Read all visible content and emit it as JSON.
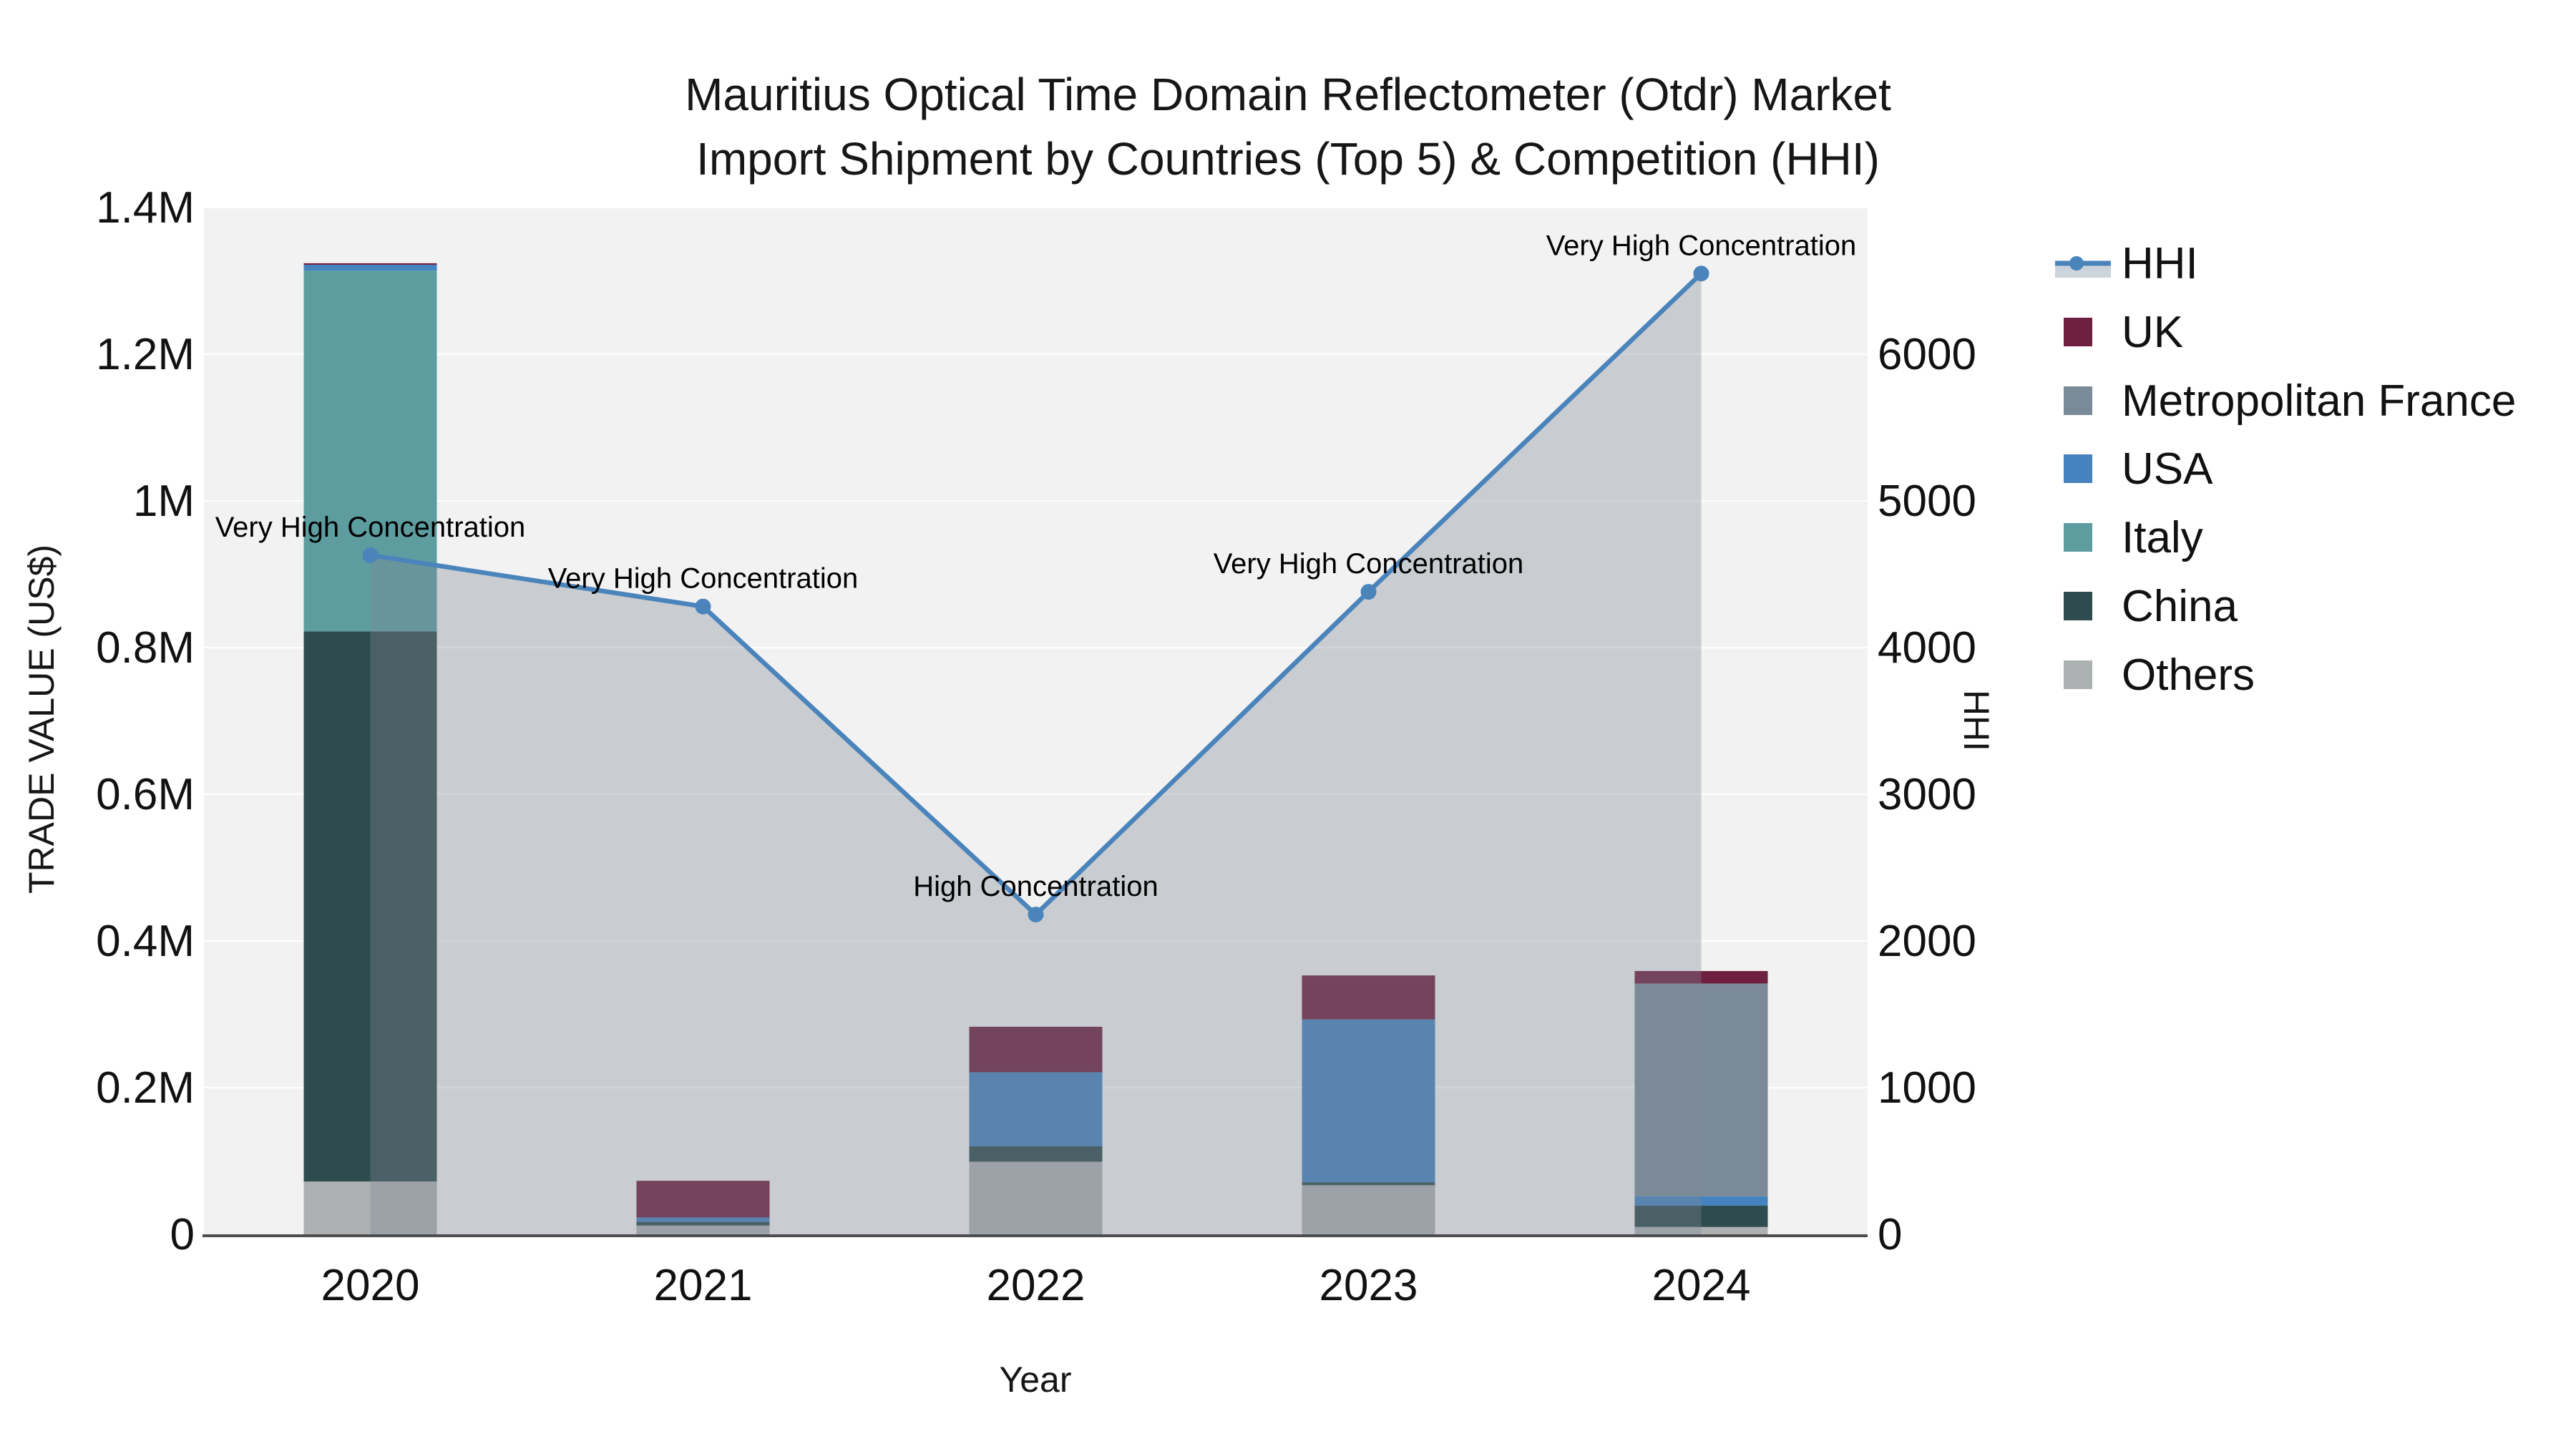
{
  "page": {
    "background": "#ffffff",
    "plot_background": "#f2f2f2",
    "grid_color": "#ffffff",
    "axis_line_color": "#4d4d4d"
  },
  "title": {
    "line1": "Mauritius Optical Time Domain Reflectometer (Otdr) Market",
    "line2": "Import Shipment by Countries (Top 5) & Competition (HHI)"
  },
  "axes": {
    "left": {
      "title": "TRADE VALUE (US$)",
      "tick_labels": [
        "0",
        "0.2M",
        "0.4M",
        "0.6M",
        "0.8M",
        "1M",
        "1.2M",
        "1.4M"
      ],
      "tick_values": [
        0,
        200000,
        400000,
        600000,
        800000,
        1000000,
        1200000,
        1400000
      ],
      "range": [
        0,
        1400000
      ]
    },
    "right": {
      "title": "HHI",
      "tick_labels": [
        "0",
        "1000",
        "2000",
        "3000",
        "4000",
        "5000",
        "6000"
      ],
      "tick_values": [
        0,
        1000,
        2000,
        3000,
        4000,
        5000,
        6000
      ],
      "range": [
        0,
        7000
      ]
    },
    "x": {
      "title": "Year",
      "categories": [
        "2020",
        "2021",
        "2022",
        "2023",
        "2024"
      ]
    }
  },
  "legend": {
    "items": [
      {
        "label": "HHI",
        "type": "line",
        "color": "#4a84bb",
        "band_color": "#ccd3db"
      },
      {
        "label": "UK",
        "type": "square",
        "color": "#6f1f40"
      },
      {
        "label": "Metropolitan France",
        "type": "square",
        "color": "#7b8a99"
      },
      {
        "label": "USA",
        "type": "square",
        "color": "#4583bf"
      },
      {
        "label": "Italy",
        "type": "square",
        "color": "#5d9da0"
      },
      {
        "label": "China",
        "type": "square",
        "color": "#2e4c4d"
      },
      {
        "label": "Others",
        "type": "square",
        "color": "#aeb1b2"
      }
    ]
  },
  "chart_data": {
    "type": "bar+line",
    "title": "Mauritius Optical Time Domain Reflectometer (Otdr) Market Import Shipment by Countries (Top 5) & Competition (HHI)",
    "xlabel": "Year",
    "ylabel_left": "TRADE VALUE (US$)",
    "ylabel_right": "HHI",
    "ylim_left": [
      0,
      1400000
    ],
    "ylim_right": [
      0,
      7000
    ],
    "grid": true,
    "legend_position": "right",
    "categories": [
      "2020",
      "2021",
      "2022",
      "2023",
      "2024"
    ],
    "bar_series_bottom_to_top": [
      {
        "name": "Others",
        "color": "#aeb1b2",
        "values": [
          72000,
          12000,
          99000,
          67000,
          10000
        ]
      },
      {
        "name": "China",
        "color": "#2e4c4d",
        "values": [
          750000,
          5000,
          21000,
          4000,
          29000
        ]
      },
      {
        "name": "Italy",
        "color": "#5d9da0",
        "values": [
          492000,
          0,
          0,
          0,
          0
        ]
      },
      {
        "name": "USA",
        "color": "#4583bf",
        "values": [
          8000,
          6000,
          101000,
          222000,
          13000
        ]
      },
      {
        "name": "Metropolitan France",
        "color": "#7b8a99",
        "values": [
          0,
          0,
          0,
          0,
          290000
        ]
      },
      {
        "name": "UK",
        "color": "#6f1f40",
        "values": [
          2000,
          50000,
          62000,
          60000,
          17000
        ]
      }
    ],
    "line_series": {
      "name": "HHI",
      "color": "#4a84bb",
      "area_color": "rgba(127,135,150,0.35)",
      "values": [
        4630,
        4280,
        2180,
        4380,
        6550
      ]
    },
    "annotations": [
      {
        "x": "2020",
        "text": "Very High Concentration"
      },
      {
        "x": "2021",
        "text": "Very High Concentration"
      },
      {
        "x": "2022",
        "text": "High Concentration"
      },
      {
        "x": "2023",
        "text": "Very High Concentration"
      },
      {
        "x": "2024",
        "text": "Very High Concentration"
      }
    ]
  }
}
